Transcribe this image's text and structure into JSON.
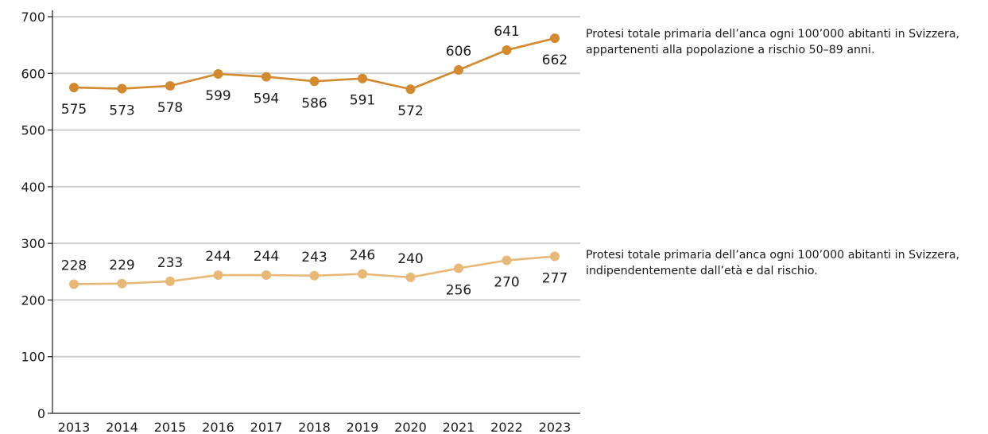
{
  "chart_data": {
    "type": "line",
    "title": "",
    "xlabel": "",
    "ylabel": "",
    "categories": [
      "2013",
      "2014",
      "2015",
      "2016",
      "2017",
      "2018",
      "2019",
      "2020",
      "2021",
      "2022",
      "2023"
    ],
    "ylim": [
      0,
      700
    ],
    "yticks": [
      0,
      100,
      200,
      300,
      400,
      500,
      600,
      700
    ],
    "grid": true,
    "series": [
      {
        "values": [
          575,
          573,
          578,
          599,
          594,
          586,
          591,
          572,
          606,
          641,
          662
        ],
        "color": "#d38a2e",
        "labels_position": [
          "below",
          "below",
          "below",
          "below",
          "below",
          "below",
          "below",
          "below",
          "above",
          "above",
          "below"
        ]
      },
      {
        "values": [
          228,
          229,
          233,
          244,
          244,
          243,
          246,
          240,
          256,
          270,
          277
        ],
        "color": "#e8b877",
        "labels_position": [
          "above",
          "above",
          "above",
          "above",
          "above",
          "above",
          "above",
          "above",
          "below",
          "below",
          "below"
        ]
      }
    ],
    "annotations": [
      "Protesi totale primaria dell’anca ogni 100’000 abitanti in Svizzera, appartenenti alla popolazione a rischio 50–89 anni.",
      "Protesi totale primaria dell’anca ogni 100’000 abitanti in Svizzera, indipendentemente dall’età e dal rischio."
    ]
  }
}
